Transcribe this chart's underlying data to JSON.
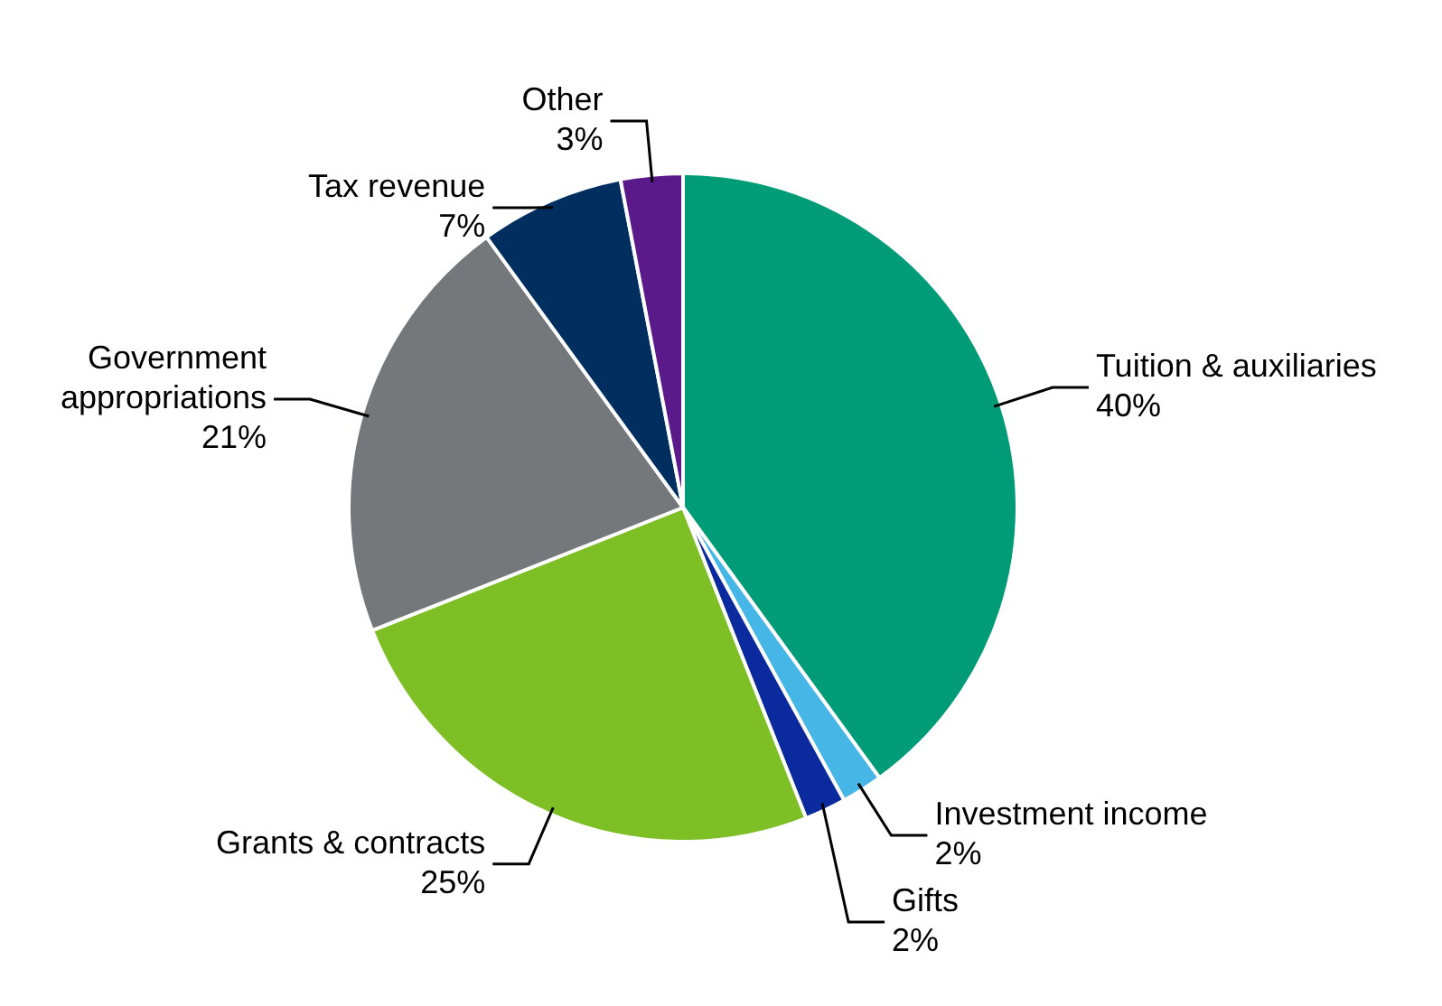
{
  "chart_data": {
    "type": "pie",
    "categories": [
      "Tuition & auxiliaries",
      "Investment income",
      "Gifts",
      "Grants & contracts",
      "Government appropriations",
      "Tax revenue",
      "Other"
    ],
    "values": [
      40,
      2,
      2,
      25,
      21,
      7,
      3
    ],
    "value_labels": [
      "40%",
      "2%",
      "2%",
      "25%",
      "21%",
      "7%",
      "3%"
    ],
    "colors": [
      "#009b77",
      "#45b6e6",
      "#0b2a9e",
      "#7dbf24",
      "#75787b",
      "#002f5f",
      "#5b1a8a"
    ],
    "legend": false
  }
}
